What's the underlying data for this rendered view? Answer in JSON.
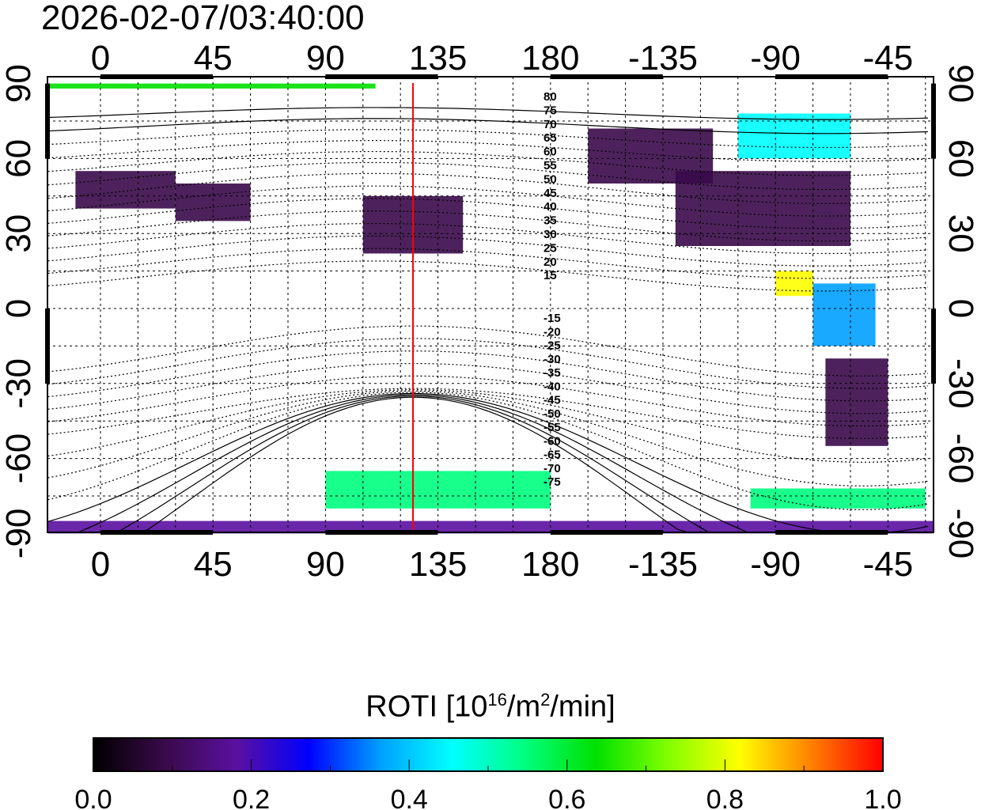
{
  "title": "2026-02-07/03:40:00",
  "colorbar": {
    "label_main": "ROTI  [10",
    "label_exp": "16",
    "label_mid": "/m",
    "label_exp2": "2",
    "label_end": "/min]",
    "ticks": [
      "0.0",
      "0.2",
      "0.4",
      "0.6",
      "0.8",
      "1.0"
    ],
    "range": [
      0.0,
      1.0
    ],
    "colors": [
      "#000000",
      "#3a0a4a",
      "#5a10a0",
      "#0000ff",
      "#00a0ff",
      "#00ffff",
      "#00ff80",
      "#00e000",
      "#80ff00",
      "#ffff00",
      "#ff8000",
      "#ff0000"
    ]
  },
  "chart_data": {
    "type": "heatmap",
    "title": "2026-02-07/03:40:00",
    "colorbar_label": "ROTI [10^16/m^2/min]",
    "x_ticks": [
      "0",
      "45",
      "90",
      "135",
      "180",
      "-135",
      "-90",
      "-45"
    ],
    "x_tick_values": [
      0,
      45,
      90,
      135,
      180,
      225,
      270,
      315
    ],
    "y_ticks": [
      "90",
      "60",
      "30",
      "0",
      "-30",
      "-60",
      "-90"
    ],
    "y_tick_values": [
      90,
      60,
      30,
      0,
      -30,
      -60,
      -90
    ],
    "xlim": [
      -21,
      333
    ],
    "ylim": [
      -90,
      90
    ],
    "meridian_marker_lon": 125,
    "magnetic_latitude_labels": [
      "80",
      "75",
      "70",
      "65",
      "60",
      "55",
      "50",
      "45",
      "40",
      "35",
      "30",
      "25",
      "20",
      "15",
      "-15",
      "-20",
      "-25",
      "-30",
      "-35",
      "-40",
      "-45",
      "-50",
      "-55",
      "-60",
      "-65",
      "-70",
      "-75"
    ],
    "patches": [
      {
        "lon": [
          -10,
          30
        ],
        "lat": [
          40,
          55
        ],
        "value": 0.05
      },
      {
        "lon": [
          30,
          60
        ],
        "lat": [
          35,
          50
        ],
        "value": 0.05
      },
      {
        "lon": [
          105,
          145
        ],
        "lat": [
          22,
          45
        ],
        "value": 0.08
      },
      {
        "lon": [
          195,
          245
        ],
        "lat": [
          50,
          72
        ],
        "value": 0.1
      },
      {
        "lon": [
          230,
          300
        ],
        "lat": [
          25,
          55
        ],
        "value": 0.07
      },
      {
        "lon": [
          255,
          300
        ],
        "lat": [
          60,
          78
        ],
        "value": 0.45
      },
      {
        "lon": [
          270,
          285
        ],
        "lat": [
          5,
          15
        ],
        "value": 0.85
      },
      {
        "lon": [
          285,
          310
        ],
        "lat": [
          -15,
          10
        ],
        "value": 0.35
      },
      {
        "lon": [
          290,
          315
        ],
        "lat": [
          -55,
          -20
        ],
        "value": 0.08
      },
      {
        "lon": [
          260,
          330
        ],
        "lat": [
          -80,
          -72
        ],
        "value": 0.55
      },
      {
        "lon": [
          90,
          180
        ],
        "lat": [
          -80,
          -65
        ],
        "value": 0.5
      },
      {
        "lon": [
          -21,
          333
        ],
        "lat": [
          -90,
          -85
        ],
        "value": 0.15
      },
      {
        "lon": [
          -21,
          110
        ],
        "lat": [
          88,
          90
        ],
        "value": 0.6
      }
    ]
  }
}
